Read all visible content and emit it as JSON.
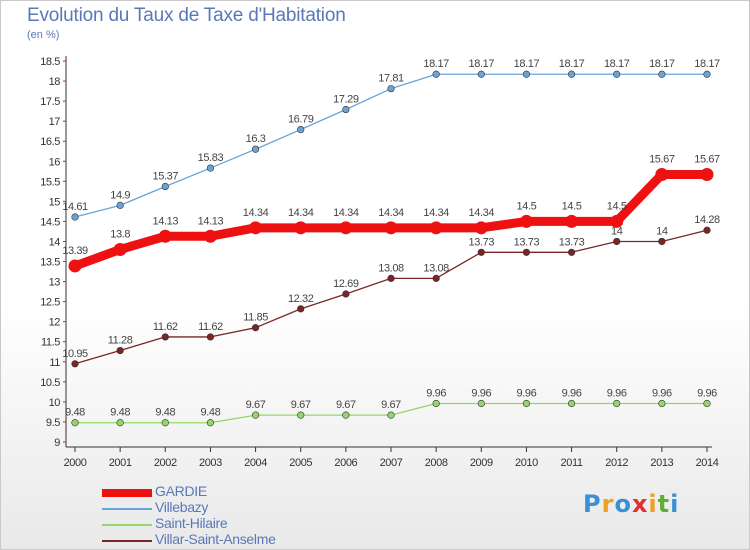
{
  "chart_data": {
    "type": "line",
    "title": "Evolution du Taux de Taxe d'Habitation",
    "subtitle": "(en %)",
    "x": [
      2000,
      2001,
      2002,
      2003,
      2004,
      2005,
      2006,
      2007,
      2008,
      2009,
      2010,
      2011,
      2012,
      2013,
      2014
    ],
    "ylim": [
      9,
      18.5
    ],
    "yticks": [
      9,
      9.5,
      10,
      10.5,
      11,
      11.5,
      12,
      12.5,
      13,
      13.5,
      14,
      14.5,
      15,
      15.5,
      16,
      16.5,
      17,
      17.5,
      18,
      18.5
    ],
    "grid": false,
    "legend_position": "bottom-left",
    "series": [
      {
        "name": "GARDIE",
        "color": "#ee1111",
        "values": [
          13.39,
          13.8,
          14.13,
          14.13,
          14.34,
          14.34,
          14.34,
          14.34,
          14.34,
          14.34,
          14.5,
          14.5,
          14.5,
          15.67,
          15.67
        ],
        "labels": [
          "13.39",
          "13.8",
          "14.13",
          "14.13",
          "14.34",
          "14.34",
          "14.34",
          "14.34",
          "14.34",
          "14.34",
          "14.5",
          "14.5",
          "14.5",
          "15.67",
          "15.67"
        ]
      },
      {
        "name": "Villebazy",
        "color": "#6aa4d6",
        "values": [
          14.61,
          14.9,
          15.37,
          15.83,
          16.3,
          16.79,
          17.29,
          17.81,
          18.17,
          18.17,
          18.17,
          18.17,
          18.17,
          18.17,
          18.17
        ],
        "labels": [
          "14.61",
          "14.9",
          "15.37",
          "15.83",
          "16.3",
          "16.79",
          "17.29",
          "17.81",
          "18.17",
          "18.17",
          "18.17",
          "18.17",
          "18.17",
          "18.17",
          "18.17"
        ]
      },
      {
        "name": "Saint-Hilaire",
        "color": "#93d66a",
        "values": [
          9.48,
          9.48,
          9.48,
          9.48,
          9.67,
          9.67,
          9.67,
          9.67,
          9.96,
          9.96,
          9.96,
          9.96,
          9.96,
          9.96,
          9.96
        ],
        "labels": [
          "9.48",
          "9.48",
          "9.48",
          "9.48",
          "9.67",
          "9.67",
          "9.67",
          "9.67",
          "9.96",
          "9.96",
          "9.96",
          "9.96",
          "9.96",
          "9.96",
          "9.96"
        ]
      },
      {
        "name": "Villar-Saint-Anselme",
        "color": "#7a2626",
        "values": [
          10.95,
          11.28,
          11.62,
          11.62,
          11.85,
          12.32,
          12.69,
          13.08,
          13.08,
          13.73,
          13.73,
          13.73,
          14,
          14,
          14.28
        ],
        "labels": [
          "10.95",
          "11.28",
          "11.62",
          "11.62",
          "11.85",
          "12.32",
          "12.69",
          "13.08",
          "13.08",
          "13.73",
          "13.73",
          "13.73",
          "14",
          "14",
          "14.28"
        ]
      }
    ]
  },
  "logo": {
    "letters": [
      "P",
      "r",
      "o",
      "x",
      "i",
      "t",
      "i"
    ]
  }
}
